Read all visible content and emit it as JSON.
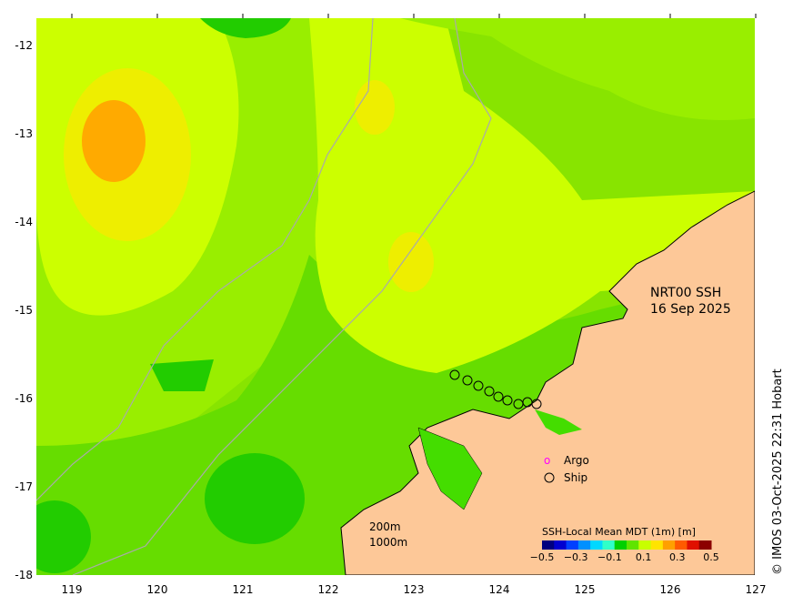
{
  "map": {
    "title_line1": "NRT00 SSH",
    "title_line2": "16 Sep 2025",
    "x_ticks": [
      "119",
      "120",
      "121",
      "122",
      "123",
      "124",
      "125",
      "126",
      "127"
    ],
    "y_ticks": [
      "-12",
      "-13",
      "-14",
      "-15",
      "-16",
      "-17",
      "-18"
    ],
    "legend": {
      "argo_marker": "o",
      "argo_label": "Argo",
      "ship_label": "Ship",
      "argo_color": "#ff00ff",
      "ship_color": "#000000"
    },
    "bathymetry": {
      "label_200": "200m",
      "label_1000": "1000m"
    },
    "colorbar": {
      "title": "SSH-Local Mean MDT (1m) [m]",
      "tick_labels": [
        "−0.5",
        "−0.3",
        "−0.1",
        "0.1",
        "0.3",
        "0.5"
      ],
      "colors": [
        "#00007f",
        "#0000d0",
        "#0040ff",
        "#0090ff",
        "#00d8ff",
        "#30ffc8",
        "#00d000",
        "#60e400",
        "#c8ff00",
        "#ffe400",
        "#ffa000",
        "#ff5a00",
        "#e01000",
        "#8c0000"
      ]
    },
    "credit": "© IMOS 03-Oct-2025 22:31 Hobart",
    "colors": {
      "land": "#fdc898",
      "green": "#44dd00",
      "green_dark": "#22cc00",
      "yellow_green": "#ccff00",
      "yellow": "#eeee00",
      "orange_yellow": "#ffcc00",
      "orange": "#ffaa00"
    }
  }
}
